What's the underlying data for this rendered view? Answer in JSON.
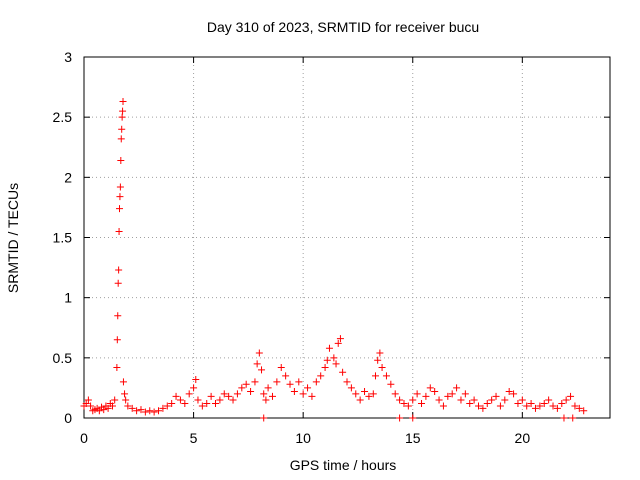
{
  "chart_data": {
    "type": "scatter",
    "title": "Day 310 of 2023, SRMTID for receiver bucu",
    "xlabel": "GPS time / hours",
    "ylabel": "SRMTID / TECUs",
    "xlim": [
      0,
      24
    ],
    "ylim": [
      0,
      3
    ],
    "xticks": [
      0,
      5,
      10,
      15,
      20
    ],
    "xtick_labels": [
      "0",
      "5",
      "10",
      "15",
      "20"
    ],
    "yticks": [
      0,
      0.5,
      1,
      1.5,
      2,
      2.5,
      3
    ],
    "ytick_labels": [
      "0",
      "0.5",
      "1",
      "1.5",
      "2",
      "2.5",
      "3"
    ],
    "grid": true,
    "series": [
      {
        "name": "SRMTID",
        "marker": "+",
        "color": "#ff0000",
        "x": [
          0.0,
          0.1,
          0.2,
          0.3,
          0.4,
          0.5,
          0.6,
          0.7,
          0.8,
          0.9,
          1.0,
          1.1,
          1.2,
          1.3,
          1.4,
          1.5,
          1.52,
          1.54,
          1.56,
          1.58,
          1.6,
          1.62,
          1.64,
          1.66,
          1.68,
          1.7,
          1.72,
          1.74,
          1.76,
          1.78,
          1.8,
          1.85,
          1.9,
          2.0,
          2.2,
          2.4,
          2.6,
          2.8,
          3.0,
          3.2,
          3.4,
          3.6,
          3.8,
          4.0,
          4.2,
          4.4,
          4.6,
          4.8,
          5.0,
          5.1,
          5.2,
          5.4,
          5.6,
          5.8,
          6.0,
          6.2,
          6.4,
          6.6,
          6.8,
          7.0,
          7.2,
          7.4,
          7.6,
          7.8,
          7.9,
          8.0,
          8.1,
          8.2,
          8.3,
          8.4,
          8.6,
          8.8,
          9.0,
          9.2,
          9.4,
          9.6,
          9.8,
          10.0,
          10.2,
          10.4,
          10.6,
          10.8,
          11.0,
          11.1,
          11.2,
          11.4,
          11.5,
          11.6,
          11.7,
          11.8,
          12.0,
          12.2,
          12.4,
          12.6,
          12.8,
          13.0,
          13.2,
          13.3,
          13.4,
          13.5,
          13.6,
          13.8,
          14.0,
          14.2,
          14.4,
          14.6,
          14.8,
          15.0,
          15.2,
          15.4,
          15.6,
          15.8,
          16.0,
          16.2,
          16.4,
          16.6,
          16.8,
          17.0,
          17.2,
          17.4,
          17.6,
          17.8,
          18.0,
          18.2,
          18.4,
          18.6,
          18.8,
          19.0,
          19.2,
          19.4,
          19.6,
          19.8,
          20.0,
          20.2,
          20.4,
          20.6,
          20.8,
          21.0,
          21.2,
          21.4,
          21.6,
          21.8,
          22.0,
          22.2,
          22.4,
          22.6,
          22.8,
          8.2,
          14.4,
          15.0,
          21.9,
          22.3
        ],
        "y": [
          0.1,
          0.12,
          0.15,
          0.1,
          0.06,
          0.07,
          0.08,
          0.06,
          0.09,
          0.07,
          0.1,
          0.08,
          0.12,
          0.1,
          0.15,
          0.42,
          0.65,
          0.85,
          1.12,
          1.23,
          1.55,
          1.74,
          1.84,
          1.92,
          2.14,
          2.32,
          2.4,
          2.5,
          2.55,
          2.63,
          0.3,
          0.2,
          0.15,
          0.1,
          0.08,
          0.06,
          0.07,
          0.05,
          0.06,
          0.05,
          0.06,
          0.08,
          0.1,
          0.12,
          0.18,
          0.15,
          0.12,
          0.2,
          0.25,
          0.32,
          0.15,
          0.1,
          0.12,
          0.18,
          0.12,
          0.15,
          0.2,
          0.18,
          0.15,
          0.2,
          0.25,
          0.28,
          0.22,
          0.3,
          0.45,
          0.54,
          0.4,
          0.2,
          0.15,
          0.25,
          0.18,
          0.3,
          0.42,
          0.35,
          0.28,
          0.22,
          0.3,
          0.2,
          0.25,
          0.18,
          0.3,
          0.35,
          0.42,
          0.48,
          0.58,
          0.5,
          0.45,
          0.62,
          0.66,
          0.38,
          0.3,
          0.25,
          0.2,
          0.15,
          0.22,
          0.18,
          0.2,
          0.35,
          0.48,
          0.54,
          0.42,
          0.35,
          0.28,
          0.2,
          0.15,
          0.12,
          0.1,
          0.15,
          0.2,
          0.12,
          0.18,
          0.25,
          0.22,
          0.15,
          0.1,
          0.18,
          0.2,
          0.25,
          0.15,
          0.2,
          0.12,
          0.15,
          0.1,
          0.08,
          0.12,
          0.15,
          0.18,
          0.1,
          0.15,
          0.22,
          0.2,
          0.12,
          0.15,
          0.1,
          0.12,
          0.08,
          0.1,
          0.12,
          0.15,
          0.1,
          0.08,
          0.12,
          0.15,
          0.18,
          0.1,
          0.08,
          0.06,
          0.0,
          0.0,
          0.0,
          0.0,
          0.0
        ]
      }
    ]
  }
}
